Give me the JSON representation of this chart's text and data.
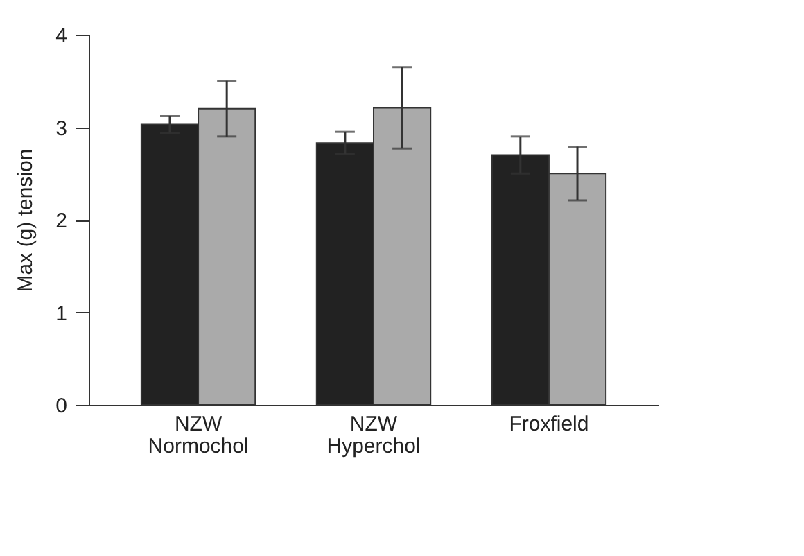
{
  "chart_data": {
    "type": "bar",
    "ylabel": "Max (g) tension",
    "categories": [
      "NZW\nNormochol",
      "NZW\nHyperchol",
      "Froxfield"
    ],
    "series": [
      {
        "color": "#222222",
        "values": [
          3.03,
          2.83,
          2.7
        ],
        "errors": [
          0.09,
          0.12,
          0.2
        ]
      },
      {
        "color": "#aaaaaa",
        "values": [
          3.2,
          3.21,
          2.5
        ],
        "errors": [
          0.3,
          0.44,
          0.29
        ]
      }
    ],
    "ylim": [
      0,
      4
    ],
    "yticks": [
      0,
      1,
      2,
      3,
      4
    ],
    "grid": false,
    "legend": false
  }
}
